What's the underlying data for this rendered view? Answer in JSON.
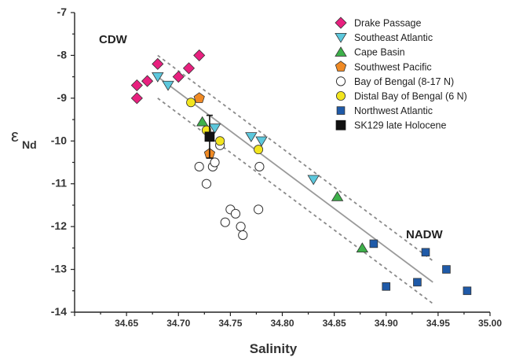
{
  "chart_data": {
    "type": "scatter",
    "xlabel": "Salinity",
    "ylabel_main": "ε",
    "ylabel_sub": "Nd",
    "xlim": [
      34.6,
      35.0
    ],
    "ylim": [
      -14,
      -7
    ],
    "xticks": [
      "34.65",
      "34.70",
      "34.75",
      "34.80",
      "34.85",
      "34.90",
      "34.95",
      "35.00"
    ],
    "yticks": [
      "-7",
      "-8",
      "-9",
      "-10",
      "-11",
      "-12",
      "-13",
      "-14"
    ],
    "xtick_values": [
      34.65,
      34.7,
      34.75,
      34.8,
      34.85,
      34.9,
      34.95,
      35.0
    ],
    "ytick_values": [
      -7,
      -8,
      -9,
      -10,
      -11,
      -12,
      -13,
      -14
    ],
    "legend_position": "top-right",
    "annotations": {
      "cdw": "CDW",
      "nadw": "NADW"
    },
    "series": [
      {
        "name": "Drake Passage",
        "marker": "diamond",
        "color": "#e8207f",
        "points": [
          [
            34.66,
            -8.7
          ],
          [
            34.66,
            -9.0
          ],
          [
            34.67,
            -8.6
          ],
          [
            34.68,
            -8.2
          ],
          [
            34.7,
            -8.5
          ],
          [
            34.71,
            -8.3
          ],
          [
            34.72,
            -8.0
          ]
        ]
      },
      {
        "name": "Southeast Atlantic",
        "marker": "triangle-down",
        "color": "#5cc8dd",
        "points": [
          [
            34.68,
            -8.5
          ],
          [
            34.69,
            -8.7
          ],
          [
            34.735,
            -9.7
          ],
          [
            34.77,
            -9.9
          ],
          [
            34.78,
            -10.0
          ],
          [
            34.83,
            -10.9
          ]
        ]
      },
      {
        "name": "Cape Basin",
        "marker": "triangle-up",
        "color": "#3db04a",
        "points": [
          [
            34.723,
            -9.55
          ],
          [
            34.853,
            -11.3
          ],
          [
            34.877,
            -12.5
          ]
        ]
      },
      {
        "name": "Southwest Pacific",
        "marker": "pentagon",
        "color": "#f08a24",
        "points": [
          [
            34.72,
            -9.0
          ],
          [
            34.73,
            -10.3
          ]
        ]
      },
      {
        "name": "Bay of Bengal (8-17 N)",
        "marker": "circle-open",
        "color": "#ffffff",
        "points": [
          [
            34.72,
            -10.6
          ],
          [
            34.727,
            -11.0
          ],
          [
            34.733,
            -10.6
          ],
          [
            34.735,
            -10.5
          ],
          [
            34.74,
            -10.1
          ],
          [
            34.745,
            -11.9
          ],
          [
            34.75,
            -11.6
          ],
          [
            34.755,
            -11.7
          ],
          [
            34.76,
            -12.0
          ],
          [
            34.762,
            -12.2
          ],
          [
            34.777,
            -11.6
          ],
          [
            34.778,
            -10.6
          ]
        ]
      },
      {
        "name": "Distal Bay of Bengal (6 N)",
        "marker": "circle",
        "color": "#f2e51e",
        "points": [
          [
            34.712,
            -9.1
          ],
          [
            34.727,
            -9.75
          ],
          [
            34.74,
            -10.0
          ],
          [
            34.777,
            -10.2
          ]
        ]
      },
      {
        "name": "Northwest Atlantic",
        "marker": "square",
        "color": "#1f5aa8",
        "points": [
          [
            34.888,
            -12.4
          ],
          [
            34.9,
            -13.4
          ],
          [
            34.93,
            -13.3
          ],
          [
            34.938,
            -12.6
          ],
          [
            34.958,
            -13.0
          ],
          [
            34.978,
            -13.5
          ]
        ]
      },
      {
        "name": "SK129 late Holocene",
        "marker": "square-large",
        "color": "#111111",
        "points": [
          [
            34.73,
            -9.9
          ]
        ],
        "error_y": [
          0.5
        ]
      }
    ],
    "fit_line": {
      "x": [
        34.68,
        34.945
      ],
      "y": [
        -8.5,
        -13.3
      ]
    },
    "bounds_upper": {
      "x": [
        34.68,
        34.945
      ],
      "y": [
        -8.0,
        -12.8
      ]
    },
    "bounds_lower": {
      "x": [
        34.68,
        34.945
      ],
      "y": [
        -9.0,
        -13.8
      ]
    }
  }
}
